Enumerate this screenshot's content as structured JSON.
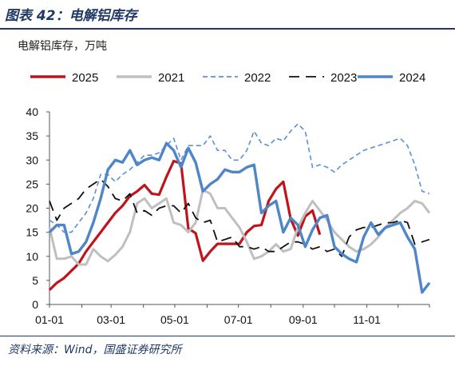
{
  "figure_title": "图表 42：电解铝库存",
  "source": "资料来源：Wind，国盛证券研究所",
  "chart_data": {
    "type": "line",
    "ylabel": "电解铝库存，万吨",
    "ylim": [
      0,
      40
    ],
    "yticks": [
      "0",
      "5",
      "10",
      "15",
      "20",
      "25",
      "30",
      "35",
      "40"
    ],
    "xlim": [
      "01-01",
      "12-31"
    ],
    "xticks": [
      "01-01",
      "03-01",
      "05-01",
      "07-01",
      "09-01",
      "11-01"
    ],
    "legend_position": "top",
    "grid": false,
    "series": [
      {
        "name": "2025",
        "color": "#c0141c",
        "style": "solid",
        "width": 3.2,
        "x": [
          "01-01",
          "01-08",
          "01-15",
          "01-22",
          "01-29",
          "02-05",
          "02-12",
          "02-19",
          "02-26",
          "03-05",
          "03-12",
          "03-19",
          "03-26",
          "04-02",
          "04-09",
          "04-16",
          "04-23",
          "04-30",
          "05-07",
          "05-14",
          "05-21",
          "05-28",
          "06-04",
          "06-11",
          "06-18",
          "06-25",
          "07-02",
          "07-09",
          "07-16",
          "07-23",
          "07-30",
          "08-06",
          "08-13",
          "08-20",
          "08-27",
          "09-03",
          "09-10",
          "09-17"
        ],
        "y": [
          3,
          4.5,
          5.5,
          7,
          8.5,
          11,
          13,
          15,
          17,
          19,
          20.5,
          22.5,
          23.5,
          24.8,
          23,
          22.8,
          26.5,
          29.8,
          29.3,
          15.8,
          14.8,
          9.1,
          11,
          12.6,
          12.6,
          12.6,
          12.6,
          15,
          16.3,
          16.5,
          21.5,
          24,
          25.5,
          17.8,
          14.3,
          18.3,
          19.5,
          14.5
        ]
      },
      {
        "name": "2021",
        "color": "#bfbfbf",
        "style": "solid",
        "width": 3,
        "x": [
          "01-01",
          "01-08",
          "01-15",
          "01-22",
          "01-29",
          "02-05",
          "02-12",
          "02-19",
          "02-26",
          "03-05",
          "03-12",
          "03-19",
          "03-26",
          "04-02",
          "04-09",
          "04-16",
          "04-23",
          "04-30",
          "05-07",
          "05-14",
          "05-21",
          "05-28",
          "06-04",
          "06-11",
          "06-18",
          "06-25",
          "07-02",
          "07-09",
          "07-16",
          "07-23",
          "07-30",
          "08-06",
          "08-13",
          "08-20",
          "08-27",
          "09-03",
          "09-10",
          "09-17",
          "09-24",
          "10-01",
          "10-08",
          "10-15",
          "10-22",
          "10-29",
          "11-05",
          "11-12",
          "11-19",
          "11-26",
          "12-03",
          "12-10",
          "12-17",
          "12-24",
          "12-31"
        ],
        "y": [
          16,
          9.5,
          9.5,
          10,
          8.3,
          8.3,
          11.5,
          10,
          9,
          10.3,
          12,
          15,
          21,
          22,
          20,
          21,
          22,
          17,
          16.5,
          15,
          17,
          23.8,
          23,
          20,
          20,
          18,
          16,
          13,
          9.5,
          10,
          11,
          12.5,
          11,
          11.5,
          16,
          19,
          21.5,
          19.5,
          17.5,
          15,
          13.5,
          12,
          11,
          11.5,
          12.5,
          14,
          16,
          17.5,
          19,
          20,
          21.5,
          21,
          19
        ]
      },
      {
        "name": "2022",
        "color": "#5b8fd6",
        "style": "dashed",
        "width": 1.6,
        "x": [
          "01-01",
          "01-08",
          "01-15",
          "01-22",
          "01-29",
          "02-05",
          "02-12",
          "02-19",
          "02-26",
          "03-05",
          "03-12",
          "03-19",
          "03-26",
          "04-02",
          "04-09",
          "04-16",
          "04-23",
          "04-30",
          "05-07",
          "05-14",
          "05-21",
          "05-28",
          "06-04",
          "06-11",
          "06-18",
          "06-25",
          "07-02",
          "07-09",
          "07-16",
          "07-23",
          "07-30",
          "08-06",
          "08-13",
          "08-20",
          "08-27",
          "09-03",
          "09-10",
          "09-17",
          "09-24",
          "10-01",
          "10-08",
          "10-15",
          "10-22",
          "10-29",
          "11-05",
          "11-12",
          "11-19",
          "11-26",
          "12-03",
          "12-10",
          "12-17",
          "12-24",
          "12-31"
        ],
        "y": [
          17.5,
          16.5,
          15,
          15,
          17,
          19,
          22,
          27,
          27,
          25.5,
          27,
          28,
          29.5,
          31,
          31,
          31.5,
          33,
          34.5,
          30,
          33,
          33,
          33,
          35,
          32,
          32,
          30,
          30,
          32,
          36,
          33.5,
          33,
          34.5,
          34,
          36,
          37.5,
          36,
          28.5,
          29,
          28.5,
          27.5,
          29,
          30,
          31,
          32,
          32.5,
          33,
          33.5,
          34,
          34.5,
          33,
          29,
          23.5,
          23
        ]
      },
      {
        "name": "2023",
        "color": "#111111",
        "style": "dashed",
        "width": 1.8,
        "x": [
          "01-01",
          "01-08",
          "01-15",
          "01-22",
          "01-29",
          "02-05",
          "02-12",
          "02-19",
          "02-26",
          "03-05",
          "03-12",
          "03-19",
          "03-26",
          "04-02",
          "04-09",
          "04-16",
          "04-23",
          "04-30",
          "05-07",
          "05-14",
          "05-21",
          "05-28",
          "06-04",
          "06-11",
          "06-18",
          "06-25",
          "07-02",
          "07-09",
          "07-16",
          "07-23",
          "07-30",
          "08-06",
          "08-13",
          "08-20",
          "08-27",
          "09-03",
          "09-10",
          "09-17",
          "09-24",
          "10-01",
          "10-08",
          "10-15",
          "10-22",
          "10-29",
          "11-05",
          "11-12",
          "11-19",
          "11-26",
          "12-03",
          "12-10",
          "12-17",
          "12-24",
          "12-31"
        ],
        "y": [
          21.5,
          17.5,
          20,
          21,
          22,
          24,
          25,
          26,
          24.5,
          22,
          21.5,
          23,
          19,
          19.5,
          18.5,
          20,
          20.5,
          20.5,
          19,
          21,
          18,
          17,
          17.5,
          13,
          13.5,
          14,
          12,
          12,
          11.5,
          12,
          11,
          11,
          12,
          13,
          13,
          12.5,
          11.5,
          12,
          11,
          11.5,
          10,
          14,
          15.5,
          16,
          16,
          16.5,
          17,
          17,
          17.5,
          17,
          12.5,
          13,
          13.5
        ]
      },
      {
        "name": "2024",
        "color": "#4f86c6",
        "style": "solid",
        "width": 3.4,
        "x": [
          "01-01",
          "01-08",
          "01-15",
          "01-22",
          "01-29",
          "02-05",
          "02-12",
          "02-19",
          "02-26",
          "03-05",
          "03-12",
          "03-19",
          "03-26",
          "04-02",
          "04-09",
          "04-16",
          "04-23",
          "04-30",
          "05-07",
          "05-14",
          "05-21",
          "05-28",
          "06-04",
          "06-11",
          "06-18",
          "06-25",
          "07-02",
          "07-09",
          "07-16",
          "07-23",
          "07-30",
          "08-06",
          "08-13",
          "08-20",
          "08-27",
          "09-03",
          "09-10",
          "09-17",
          "09-24",
          "10-01",
          "10-08",
          "10-15",
          "10-22",
          "10-29",
          "11-05",
          "11-12",
          "11-19",
          "11-26",
          "12-03",
          "12-10",
          "12-17",
          "12-24",
          "12-31"
        ],
        "y": [
          15,
          16.5,
          16.5,
          10.5,
          11,
          13,
          17,
          22,
          28,
          30,
          29.5,
          32,
          29,
          30,
          30.5,
          30,
          33.5,
          32,
          28.5,
          32.5,
          29.5,
          23.5,
          25,
          26,
          28,
          27.5,
          27.5,
          28.5,
          29,
          19,
          20.5,
          21.5,
          15,
          18,
          16.5,
          12,
          15.5,
          18,
          18.5,
          12,
          10.5,
          9.5,
          8.8,
          14,
          17,
          14.5,
          16,
          16.5,
          17,
          14,
          11.5,
          2.5,
          4.5
        ]
      }
    ]
  }
}
